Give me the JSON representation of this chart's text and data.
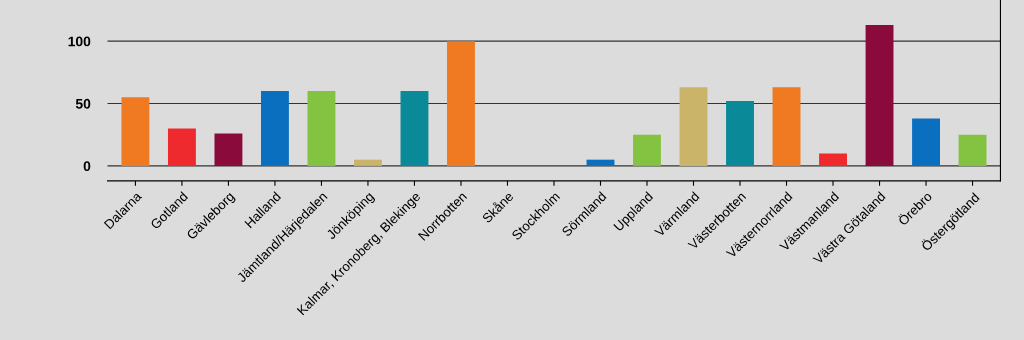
{
  "chart_data": {
    "type": "bar",
    "categories": [
      "Dalarna",
      "Gotland",
      "Gävleborg",
      "Halland",
      "Jämtland/Härjedalen",
      "Jönköping",
      "Kalmar, Kronoberg, Blekinge",
      "Norrbotten",
      "Skåne",
      "Stockholm",
      "Sörmland",
      "Uppland",
      "Värmland",
      "Västerbotten",
      "Västernorrland",
      "Västmanland",
      "Västra Götaland",
      "Örebro",
      "Östergötland"
    ],
    "values": [
      55,
      30,
      26,
      60,
      60,
      5,
      60,
      100,
      null,
      null,
      5,
      25,
      63,
      52,
      63,
      10,
      113,
      38,
      25
    ],
    "colors": [
      "#f07a22",
      "#ee2a2e",
      "#8b0a3c",
      "#0a6fbf",
      "#83c341",
      "#c9b46a",
      "#0a8a99",
      "#f07a22",
      "#ee2a2e",
      "#8b0a3c",
      "#0a6fbf",
      "#83c341",
      "#c9b46a",
      "#0a8a99",
      "#f07a22",
      "#ee2a2e",
      "#8b0a3c",
      "#0a6fbf",
      "#83c341"
    ],
    "ylim": [
      -12,
      133
    ],
    "yticks": [
      0,
      50,
      100
    ],
    "grid": "y"
  }
}
